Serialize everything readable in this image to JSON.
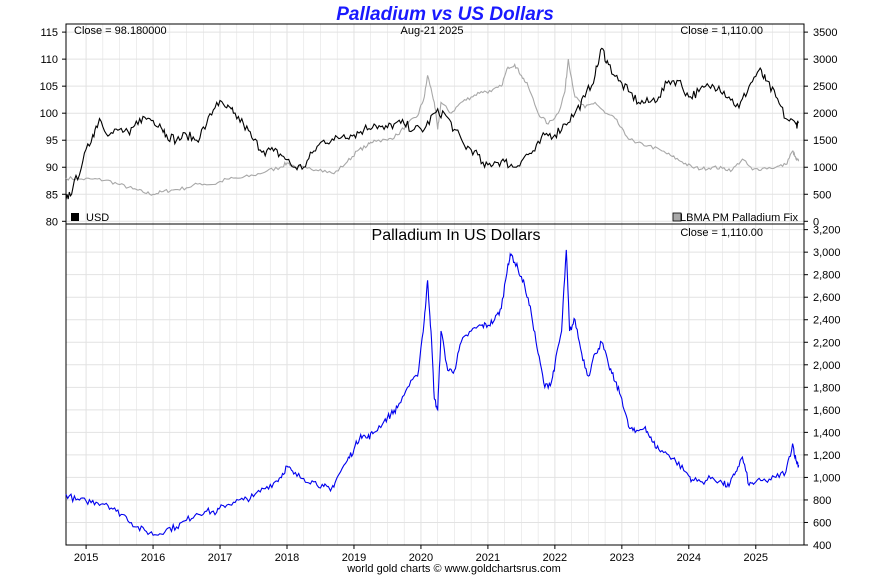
{
  "title": "Palladium vs US Dollars",
  "footer": "world gold charts © www.goldchartsrus.com",
  "top_panel": {
    "close_left": "Close = 98.180000",
    "date": "Aug-21  2025",
    "close_right": "Close = 1,110.00",
    "legend_left": "USD",
    "legend_right": "LBMA PM Palladium Fix"
  },
  "bottom_panel": {
    "subtitle": "Palladium In US Dollars",
    "close_right": "Close = 1,110.00"
  },
  "colors": {
    "title": "#1a1aff",
    "usd_series": "#000000",
    "palladium_top_series": "#a8a8a8",
    "palladium_bottom_series": "#0000ee",
    "grid": "#e2e2e2"
  },
  "chart_data": [
    {
      "type": "line",
      "panel": "top",
      "x_ticks": [
        "2015",
        "2016",
        "2017",
        "2018",
        "2019",
        "2020",
        "2021",
        "2022",
        "2023",
        "2024",
        "2025"
      ],
      "y_left_ticks": [
        80,
        85,
        90,
        95,
        100,
        105,
        110,
        115
      ],
      "y_left_lim": [
        79.5,
        116.5
      ],
      "y_right_ticks": [
        0,
        500,
        1000,
        1500,
        2000,
        2500,
        3000,
        3500
      ],
      "y_right_lim": [
        -50,
        3650
      ],
      "x_lim": [
        2014.7,
        2025.72
      ],
      "series": [
        {
          "name": "USD",
          "axis": "left",
          "points": [
            [
              2014.7,
              84
            ],
            [
              2014.8,
              86
            ],
            [
              2014.95,
              91
            ],
            [
              2015.1,
              96
            ],
            [
              2015.2,
              99
            ],
            [
              2015.35,
              96
            ],
            [
              2015.5,
              97
            ],
            [
              2015.65,
              96
            ],
            [
              2015.8,
              99
            ],
            [
              2015.95,
              99
            ],
            [
              2016.1,
              98
            ],
            [
              2016.2,
              96
            ],
            [
              2016.35,
              95
            ],
            [
              2016.5,
              96
            ],
            [
              2016.65,
              95
            ],
            [
              2016.8,
              98
            ],
            [
              2016.95,
              102
            ],
            [
              2017.1,
              101
            ],
            [
              2017.2,
              100
            ],
            [
              2017.35,
              98
            ],
            [
              2017.5,
              95
            ],
            [
              2017.65,
              93
            ],
            [
              2017.8,
              93
            ],
            [
              2017.95,
              92
            ],
            [
              2018.1,
              90
            ],
            [
              2018.25,
              90
            ],
            [
              2018.4,
              93
            ],
            [
              2018.55,
              95
            ],
            [
              2018.7,
              95
            ],
            [
              2018.85,
              96
            ],
            [
              2019.0,
              96
            ],
            [
              2019.15,
              97
            ],
            [
              2019.3,
              98
            ],
            [
              2019.45,
              97
            ],
            [
              2019.6,
              98
            ],
            [
              2019.75,
              98
            ],
            [
              2019.9,
              97
            ],
            [
              2020.05,
              97
            ],
            [
              2020.2,
              100
            ],
            [
              2020.35,
              100
            ],
            [
              2020.5,
              97
            ],
            [
              2020.65,
              94
            ],
            [
              2020.8,
              93
            ],
            [
              2020.95,
              90
            ],
            [
              2021.1,
              91
            ],
            [
              2021.25,
              91
            ],
            [
              2021.4,
              90
            ],
            [
              2021.55,
              92
            ],
            [
              2021.7,
              93
            ],
            [
              2021.85,
              96
            ],
            [
              2022.0,
              96
            ],
            [
              2022.15,
              98
            ],
            [
              2022.3,
              100
            ],
            [
              2022.45,
              103
            ],
            [
              2022.6,
              107
            ],
            [
              2022.7,
              112
            ],
            [
              2022.8,
              109
            ],
            [
              2022.95,
              106
            ],
            [
              2023.1,
              104
            ],
            [
              2023.25,
              102
            ],
            [
              2023.4,
              102
            ],
            [
              2023.55,
              103
            ],
            [
              2023.7,
              106
            ],
            [
              2023.85,
              106
            ],
            [
              2024.0,
              103
            ],
            [
              2024.15,
              104
            ],
            [
              2024.3,
              105
            ],
            [
              2024.45,
              105
            ],
            [
              2024.6,
              103
            ],
            [
              2024.75,
              101
            ],
            [
              2024.9,
              105
            ],
            [
              2025.05,
              108
            ],
            [
              2025.15,
              106
            ],
            [
              2025.3,
              103
            ],
            [
              2025.45,
              99
            ],
            [
              2025.6,
              98
            ],
            [
              2025.64,
              98.18
            ]
          ]
        },
        {
          "name": "LBMA PM Palladium Fix",
          "axis": "right",
          "points": [
            [
              2014.7,
              800
            ],
            [
              2014.9,
              780
            ],
            [
              2015.1,
              780
            ],
            [
              2015.3,
              760
            ],
            [
              2015.5,
              680
            ],
            [
              2015.7,
              600
            ],
            [
              2015.85,
              540
            ],
            [
              2016.0,
              500
            ],
            [
              2016.15,
              550
            ],
            [
              2016.3,
              580
            ],
            [
              2016.5,
              620
            ],
            [
              2016.7,
              700
            ],
            [
              2016.9,
              680
            ],
            [
              2017.1,
              780
            ],
            [
              2017.3,
              800
            ],
            [
              2017.5,
              850
            ],
            [
              2017.7,
              930
            ],
            [
              2017.9,
              1000
            ],
            [
              2018.0,
              1080
            ],
            [
              2018.15,
              1000
            ],
            [
              2018.3,
              980
            ],
            [
              2018.5,
              960
            ],
            [
              2018.7,
              880
            ],
            [
              2018.9,
              1100
            ],
            [
              2019.05,
              1300
            ],
            [
              2019.2,
              1400
            ],
            [
              2019.3,
              1500
            ],
            [
              2019.5,
              1500
            ],
            [
              2019.65,
              1600
            ],
            [
              2019.8,
              1800
            ],
            [
              2019.95,
              1950
            ],
            [
              2020.05,
              2300
            ],
            [
              2020.1,
              2700
            ],
            [
              2020.2,
              2200
            ],
            [
              2020.25,
              1700
            ],
            [
              2020.3,
              2200
            ],
            [
              2020.45,
              2000
            ],
            [
              2020.6,
              2200
            ],
            [
              2020.75,
              2300
            ],
            [
              2020.9,
              2400
            ],
            [
              2021.05,
              2400
            ],
            [
              2021.2,
              2500
            ],
            [
              2021.3,
              2850
            ],
            [
              2021.4,
              2900
            ],
            [
              2021.5,
              2700
            ],
            [
              2021.6,
              2500
            ],
            [
              2021.75,
              2000
            ],
            [
              2021.9,
              1800
            ],
            [
              2022.05,
              2000
            ],
            [
              2022.15,
              2400
            ],
            [
              2022.2,
              3000
            ],
            [
              2022.3,
              2300
            ],
            [
              2022.45,
              2100
            ],
            [
              2022.6,
              2200
            ],
            [
              2022.75,
              2000
            ],
            [
              2022.9,
              1900
            ],
            [
              2023.05,
              1600
            ],
            [
              2023.2,
              1450
            ],
            [
              2023.4,
              1400
            ],
            [
              2023.6,
              1300
            ],
            [
              2023.75,
              1200
            ],
            [
              2023.9,
              1100
            ],
            [
              2024.05,
              1000
            ],
            [
              2024.2,
              970
            ],
            [
              2024.35,
              1000
            ],
            [
              2024.5,
              980
            ],
            [
              2024.65,
              950
            ],
            [
              2024.8,
              1150
            ],
            [
              2024.95,
              950
            ],
            [
              2025.1,
              980
            ],
            [
              2025.3,
              1000
            ],
            [
              2025.45,
              1050
            ],
            [
              2025.55,
              1300
            ],
            [
              2025.6,
              1150
            ],
            [
              2025.64,
              1110
            ]
          ]
        }
      ]
    },
    {
      "type": "line",
      "panel": "bottom",
      "title": "Palladium In US Dollars",
      "x_ticks": [
        "2015",
        "2016",
        "2017",
        "2018",
        "2019",
        "2020",
        "2021",
        "2022",
        "2023",
        "2024",
        "2025"
      ],
      "y_ticks": [
        400,
        600,
        800,
        1000,
        1200,
        1400,
        1600,
        1800,
        2000,
        2200,
        2400,
        2600,
        2800,
        3000,
        3200
      ],
      "y_tick_labels": [
        "400",
        "600",
        "800",
        "1,000",
        "1,200",
        "1,400",
        "1,600",
        "1,800",
        "2,000",
        "2,200",
        "2,400",
        "2,600",
        "2,800",
        "3,000",
        "3,200"
      ],
      "y_lim": [
        400,
        3250
      ],
      "x_lim": [
        2014.7,
        2025.72
      ],
      "series": [
        {
          "name": "LBMA PM Palladium Fix",
          "points": [
            [
              2014.7,
              850
            ],
            [
              2014.85,
              800
            ],
            [
              2015.0,
              790
            ],
            [
              2015.15,
              780
            ],
            [
              2015.3,
              770
            ],
            [
              2015.45,
              700
            ],
            [
              2015.6,
              650
            ],
            [
              2015.75,
              560
            ],
            [
              2015.9,
              520
            ],
            [
              2016.05,
              490
            ],
            [
              2016.2,
              540
            ],
            [
              2016.35,
              560
            ],
            [
              2016.5,
              620
            ],
            [
              2016.65,
              680
            ],
            [
              2016.8,
              700
            ],
            [
              2016.95,
              690
            ],
            [
              2017.05,
              750
            ],
            [
              2017.2,
              780
            ],
            [
              2017.35,
              800
            ],
            [
              2017.5,
              830
            ],
            [
              2017.65,
              900
            ],
            [
              2017.8,
              950
            ],
            [
              2017.9,
              1000
            ],
            [
              2018.0,
              1100
            ],
            [
              2018.1,
              1030
            ],
            [
              2018.25,
              990
            ],
            [
              2018.4,
              960
            ],
            [
              2018.55,
              920
            ],
            [
              2018.65,
              880
            ],
            [
              2018.75,
              1000
            ],
            [
              2018.9,
              1150
            ],
            [
              2019.0,
              1250
            ],
            [
              2019.1,
              1380
            ],
            [
              2019.2,
              1350
            ],
            [
              2019.3,
              1400
            ],
            [
              2019.45,
              1500
            ],
            [
              2019.55,
              1560
            ],
            [
              2019.65,
              1620
            ],
            [
              2019.8,
              1800
            ],
            [
              2019.95,
              1900
            ],
            [
              2020.05,
              2400
            ],
            [
              2020.1,
              2750
            ],
            [
              2020.15,
              2300
            ],
            [
              2020.2,
              1700
            ],
            [
              2020.25,
              1600
            ],
            [
              2020.3,
              2300
            ],
            [
              2020.4,
              1950
            ],
            [
              2020.5,
              1950
            ],
            [
              2020.6,
              2200
            ],
            [
              2020.75,
              2300
            ],
            [
              2020.9,
              2350
            ],
            [
              2021.0,
              2350
            ],
            [
              2021.1,
              2400
            ],
            [
              2021.2,
              2500
            ],
            [
              2021.3,
              2900
            ],
            [
              2021.35,
              2980
            ],
            [
              2021.45,
              2850
            ],
            [
              2021.55,
              2700
            ],
            [
              2021.65,
              2450
            ],
            [
              2021.75,
              2100
            ],
            [
              2021.85,
              1800
            ],
            [
              2021.95,
              1850
            ],
            [
              2022.0,
              2000
            ],
            [
              2022.1,
              2300
            ],
            [
              2022.17,
              3020
            ],
            [
              2022.22,
              2300
            ],
            [
              2022.3,
              2400
            ],
            [
              2022.4,
              2100
            ],
            [
              2022.5,
              1900
            ],
            [
              2022.6,
              2100
            ],
            [
              2022.7,
              2200
            ],
            [
              2022.8,
              2000
            ],
            [
              2022.9,
              1850
            ],
            [
              2023.0,
              1700
            ],
            [
              2023.1,
              1450
            ],
            [
              2023.2,
              1400
            ],
            [
              2023.35,
              1450
            ],
            [
              2023.45,
              1320
            ],
            [
              2023.55,
              1250
            ],
            [
              2023.7,
              1200
            ],
            [
              2023.8,
              1150
            ],
            [
              2023.95,
              1050
            ],
            [
              2024.05,
              980
            ],
            [
              2024.2,
              960
            ],
            [
              2024.35,
              1000
            ],
            [
              2024.5,
              950
            ],
            [
              2024.6,
              920
            ],
            [
              2024.7,
              1050
            ],
            [
              2024.8,
              1180
            ],
            [
              2024.9,
              930
            ],
            [
              2025.0,
              960
            ],
            [
              2025.15,
              970
            ],
            [
              2025.3,
              1000
            ],
            [
              2025.45,
              1050
            ],
            [
              2025.55,
              1300
            ],
            [
              2025.6,
              1150
            ],
            [
              2025.64,
              1110
            ]
          ]
        }
      ]
    }
  ]
}
